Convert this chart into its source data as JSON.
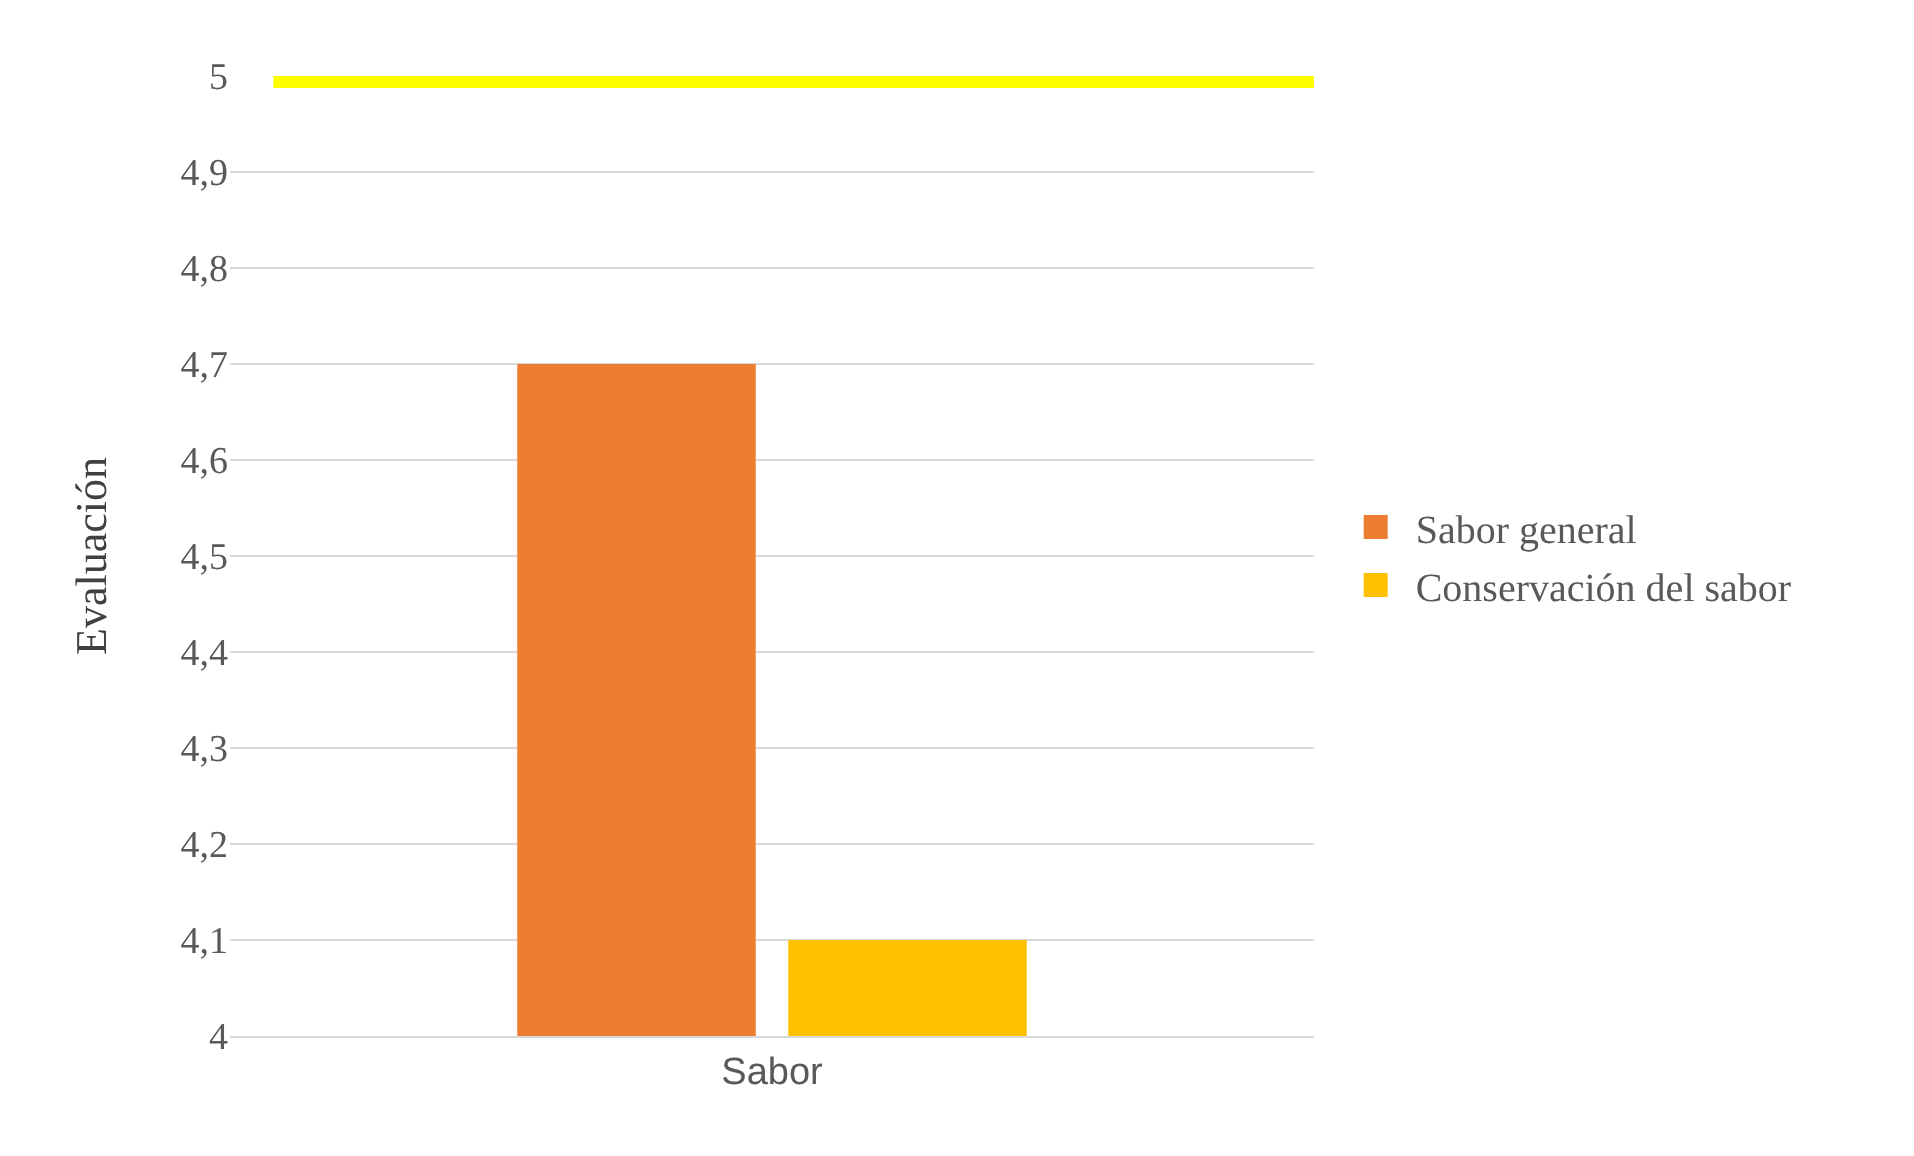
{
  "chart_data": {
    "type": "bar",
    "ylabel": "Evaluación",
    "categories": [
      "Sabor"
    ],
    "series": [
      {
        "name": "Sabor general",
        "color": "#ed7d31",
        "values": [
          4.7
        ]
      },
      {
        "name": "Conservación del sabor",
        "color": "#ffc000",
        "values": [
          4.1
        ]
      }
    ],
    "ylim": [
      4,
      5
    ],
    "yticks": [
      4,
      {
        "value": 4.1,
        "label": "4,1"
      },
      {
        "value": 4.2,
        "label": "4,2"
      },
      {
        "value": 4.3,
        "label": "4,3"
      },
      {
        "value": 4.4,
        "label": "4,4"
      },
      {
        "value": 4.5,
        "label": "4,5"
      },
      {
        "value": 4.6,
        "label": "4,6"
      },
      {
        "value": 4.7,
        "label": "4,7"
      },
      {
        "value": 4.8,
        "label": "4,8"
      },
      {
        "value": 4.9,
        "label": "4,9"
      },
      5
    ],
    "ref_lines": [
      {
        "axis": "y",
        "value": 5,
        "color": "#ffff00"
      }
    ],
    "grid": "y",
    "legend": "right"
  }
}
